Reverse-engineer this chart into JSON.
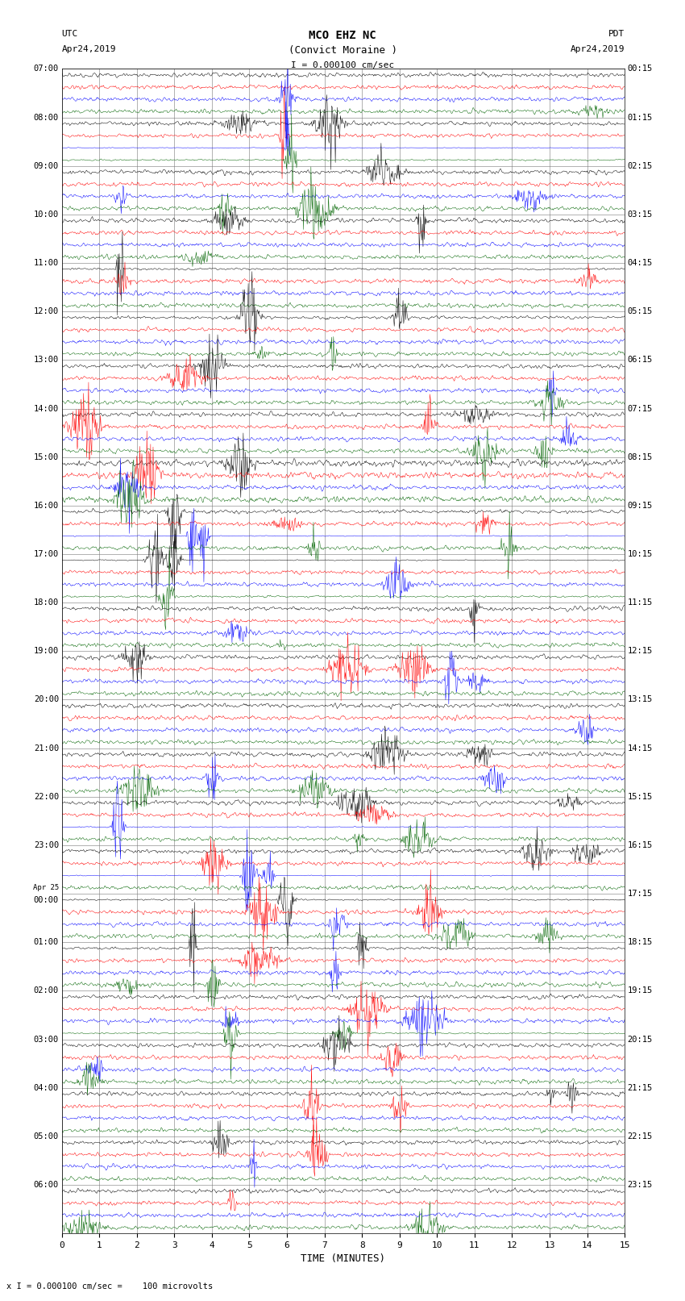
{
  "title_line1": "MCO EHZ NC",
  "title_line2": "(Convict Moraine )",
  "scale_label": "I = 0.000100 cm/sec",
  "bottom_label": "x I = 0.000100 cm/sec =    100 microvolts",
  "utc_label": "UTC",
  "pdt_label": "PDT",
  "date_left": "Apr24,2019",
  "date_right": "Apr24,2019",
  "xlabel": "TIME (MINUTES)",
  "bg_color": "#ffffff",
  "trace_colors": [
    "#000000",
    "#ff0000",
    "#0000ff",
    "#006400"
  ],
  "n_rows": 96,
  "n_colors": 4,
  "n_hours": 24,
  "minutes_per_trace": 15,
  "xlim": [
    0,
    15
  ],
  "xticks": [
    0,
    1,
    2,
    3,
    4,
    5,
    6,
    7,
    8,
    9,
    10,
    11,
    12,
    13,
    14,
    15
  ],
  "grid_color": "#777777",
  "label_color": "#000000",
  "left_utc_times": [
    "07:00",
    "08:00",
    "09:00",
    "10:00",
    "11:00",
    "12:00",
    "13:00",
    "14:00",
    "15:00",
    "16:00",
    "17:00",
    "18:00",
    "19:00",
    "20:00",
    "21:00",
    "22:00",
    "23:00",
    "Apr 25\n00:00",
    "01:00",
    "02:00",
    "03:00",
    "04:00",
    "05:00",
    "06:00"
  ],
  "right_pdt_times": [
    "00:15",
    "01:15",
    "02:15",
    "03:15",
    "04:15",
    "05:15",
    "06:15",
    "07:15",
    "08:15",
    "09:15",
    "10:15",
    "11:15",
    "12:15",
    "13:15",
    "14:15",
    "15:15",
    "16:15",
    "17:15",
    "18:15",
    "19:15",
    "20:15",
    "21:15",
    "22:15",
    "23:15"
  ],
  "trace_amplitude": 0.38,
  "noise_base": 0.04
}
